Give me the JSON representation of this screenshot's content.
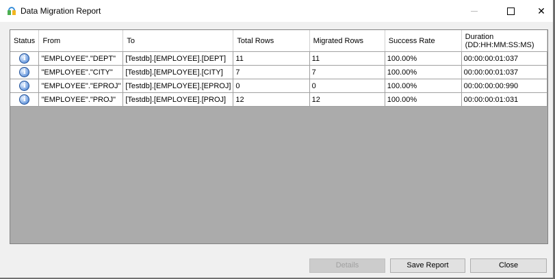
{
  "window": {
    "title": "Data Migration Report",
    "controls": [
      "minimize",
      "maximize",
      "close"
    ]
  },
  "table": {
    "columns": [
      "Status",
      "From",
      "To",
      "Total Rows",
      "Migrated Rows",
      "Success Rate",
      "Duration (DD:HH:MM:SS:MS)"
    ],
    "rows": [
      {
        "status": "info-icon",
        "from": "\"EMPLOYEE\".\"DEPT\"",
        "to": "[Testdb].[EMPLOYEE].[DEPT]",
        "total": "11",
        "migrated": "11",
        "rate": "100.00%",
        "duration": "00:00:00:01:037"
      },
      {
        "status": "info-icon",
        "from": "\"EMPLOYEE\".\"CITY\"",
        "to": "[Testdb].[EMPLOYEE].[CITY]",
        "total": "7",
        "migrated": "7",
        "rate": "100.00%",
        "duration": "00:00:00:01:037"
      },
      {
        "status": "info-icon",
        "from": "\"EMPLOYEE\".\"EPROJ\"",
        "to": "[Testdb].[EMPLOYEE].[EPROJ]",
        "total": "0",
        "migrated": "0",
        "rate": "100.00%",
        "duration": "00:00:00:00:990"
      },
      {
        "status": "info-icon",
        "from": "\"EMPLOYEE\".\"PROJ\"",
        "to": "[Testdb].[EMPLOYEE].[PROJ]",
        "total": "12",
        "migrated": "12",
        "rate": "100.00%",
        "duration": "00:00:00:01:031"
      }
    ]
  },
  "buttons": {
    "details": "Details",
    "save_report": "Save Report",
    "close": "Close"
  }
}
